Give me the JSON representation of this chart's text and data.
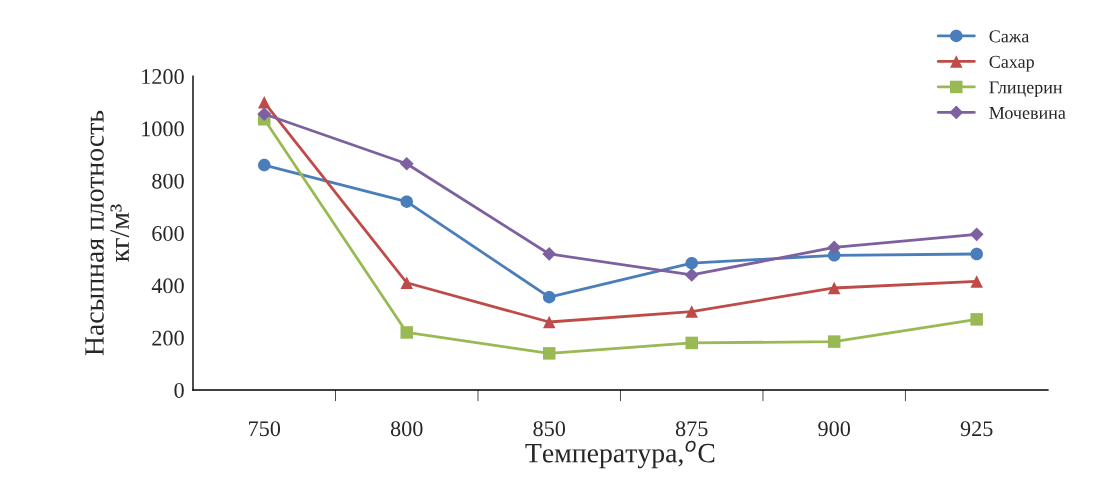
{
  "chart_data": {
    "type": "line",
    "xlabel": "Температура,$^{o}$C",
    "ylabel": "Насыпная плотность\nкг/м³",
    "categories": [
      "750",
      "800",
      "850",
      "875",
      "900",
      "925"
    ],
    "ylim": [
      0,
      1200
    ],
    "yticks": [
      0,
      200,
      400,
      600,
      800,
      1000,
      1200
    ],
    "grid": false,
    "legend": "top right",
    "line_style": "solid",
    "series": [
      {
        "name": "Сажа",
        "color": "#4a7ebb",
        "marker": "circle",
        "values": [
          860,
          720,
          355,
          485,
          515,
          520
        ]
      },
      {
        "name": "Сахар",
        "color": "#be4b48",
        "marker": "triangle",
        "values": [
          1100,
          410,
          260,
          300,
          390,
          415
        ]
      },
      {
        "name": "Глицерин",
        "color": "#98b954",
        "marker": "square",
        "values": [
          1035,
          220,
          140,
          180,
          185,
          270
        ]
      },
      {
        "name": "Мочевина",
        "color": "#7d60a0",
        "marker": "diamond",
        "values": [
          1055,
          865,
          520,
          440,
          545,
          595
        ]
      }
    ]
  }
}
